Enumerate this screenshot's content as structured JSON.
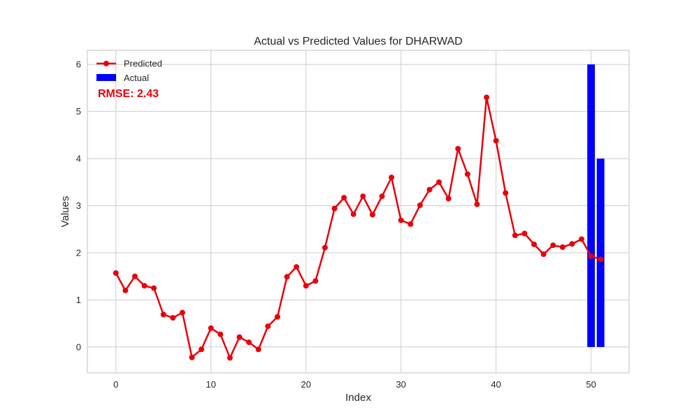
{
  "chart_data": {
    "type": "line",
    "title": "Actual vs Predicted Values for DHARWAD",
    "xlabel": "Index",
    "ylabel": "Values",
    "xlim": [
      -3,
      54
    ],
    "ylim": [
      -0.55,
      6.3
    ],
    "xticks": [
      0,
      10,
      20,
      30,
      40,
      50
    ],
    "yticks": [
      0,
      1,
      2,
      3,
      4,
      5,
      6
    ],
    "grid": true,
    "legend_position": "top-left",
    "annotation": {
      "text": "RMSE: 2.43",
      "color": "#e8000b"
    },
    "series": [
      {
        "name": "Predicted",
        "kind": "line",
        "color": "#e8000b",
        "x": [
          0,
          1,
          2,
          3,
          4,
          5,
          6,
          7,
          8,
          9,
          10,
          11,
          12,
          13,
          14,
          15,
          16,
          17,
          18,
          19,
          20,
          21,
          22,
          23,
          24,
          25,
          26,
          27,
          28,
          29,
          30,
          31,
          32,
          33,
          34,
          35,
          36,
          37,
          38,
          39,
          40,
          41,
          42,
          43,
          44,
          45,
          46,
          47,
          48,
          49,
          50,
          51
        ],
        "values": [
          1.57,
          1.2,
          1.5,
          1.3,
          1.25,
          0.69,
          0.62,
          0.73,
          -0.22,
          -0.05,
          0.4,
          0.27,
          -0.23,
          0.21,
          0.1,
          -0.05,
          0.44,
          0.64,
          1.49,
          1.7,
          1.3,
          1.4,
          2.11,
          2.94,
          3.17,
          2.82,
          3.2,
          2.81,
          3.2,
          3.6,
          2.69,
          2.61,
          3.01,
          3.34,
          3.5,
          3.15,
          4.21,
          3.67,
          3.03,
          5.3,
          4.38,
          3.27,
          2.37,
          2.41,
          2.18,
          1.97,
          2.16,
          2.12,
          2.19,
          2.29,
          1.93,
          1.86
        ]
      },
      {
        "name": "Actual",
        "kind": "bar",
        "color": "#0000ff",
        "x": [
          50,
          51
        ],
        "values": [
          6,
          4
        ]
      }
    ]
  }
}
